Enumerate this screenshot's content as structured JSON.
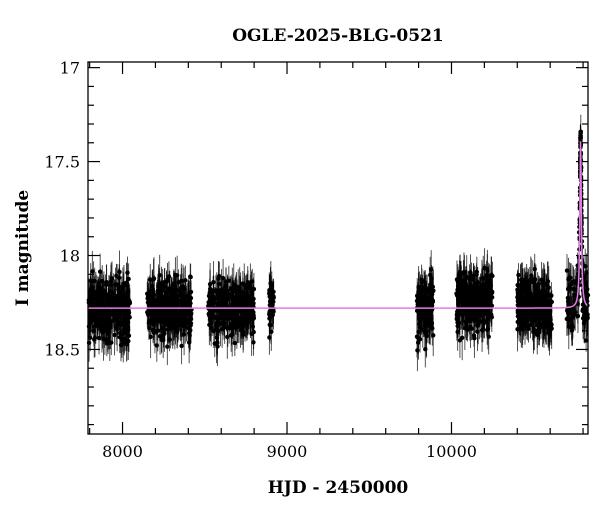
{
  "chart_data": {
    "type": "scatter",
    "title": "OGLE-2025-BLG-0521",
    "xlabel": "HJD - 2450000",
    "ylabel": "I magnitude",
    "xlim": [
      7790,
      10830
    ],
    "ylim": [
      18.95,
      16.97
    ],
    "y_inverted": true,
    "x_ticks": [
      8000,
      9000,
      10000
    ],
    "x_tick_labels": [
      "8000",
      "9000",
      "10000"
    ],
    "y_ticks": [
      17,
      17.5,
      18,
      18.5
    ],
    "y_tick_labels": [
      "17",
      "17.5",
      "18",
      "18.5"
    ],
    "grid": false,
    "legend": "none",
    "colors": {
      "points": "#000000",
      "model": "#e47be4"
    },
    "series": [
      {
        "kind": "observations",
        "note_baseline_mag": 18.28,
        "seasons": [
          {
            "x_range": [
              7795,
              8045
            ],
            "mag_center": 18.28,
            "mag_spread": 0.22,
            "n": 320
          },
          {
            "x_range": [
              8150,
              8420
            ],
            "mag_center": 18.28,
            "mag_spread": 0.22,
            "n": 340
          },
          {
            "x_range": [
              8520,
              8800
            ],
            "mag_center": 18.28,
            "mag_spread": 0.22,
            "n": 340
          },
          {
            "x_range": [
              8890,
              8920
            ],
            "mag_center": 18.28,
            "mag_spread": 0.2,
            "n": 40
          },
          {
            "x_range": [
              9790,
              9890
            ],
            "mag_center": 18.28,
            "mag_spread": 0.24,
            "n": 150
          },
          {
            "x_range": [
              10030,
              10250
            ],
            "mag_center": 18.24,
            "mag_spread": 0.22,
            "n": 300
          },
          {
            "x_range": [
              10400,
              10610
            ],
            "mag_center": 18.27,
            "mag_spread": 0.22,
            "n": 300
          },
          {
            "x_range": [
              10700,
              10830
            ],
            "mag_center": 18.28,
            "mag_spread": 0.22,
            "n": 120
          }
        ],
        "peak": {
          "x": 10785,
          "mag": 17.38
        }
      },
      {
        "kind": "model",
        "baseline_mag": 18.28,
        "peak_x": 10785,
        "peak_mag": 17.38,
        "width_days": 7
      }
    ]
  }
}
